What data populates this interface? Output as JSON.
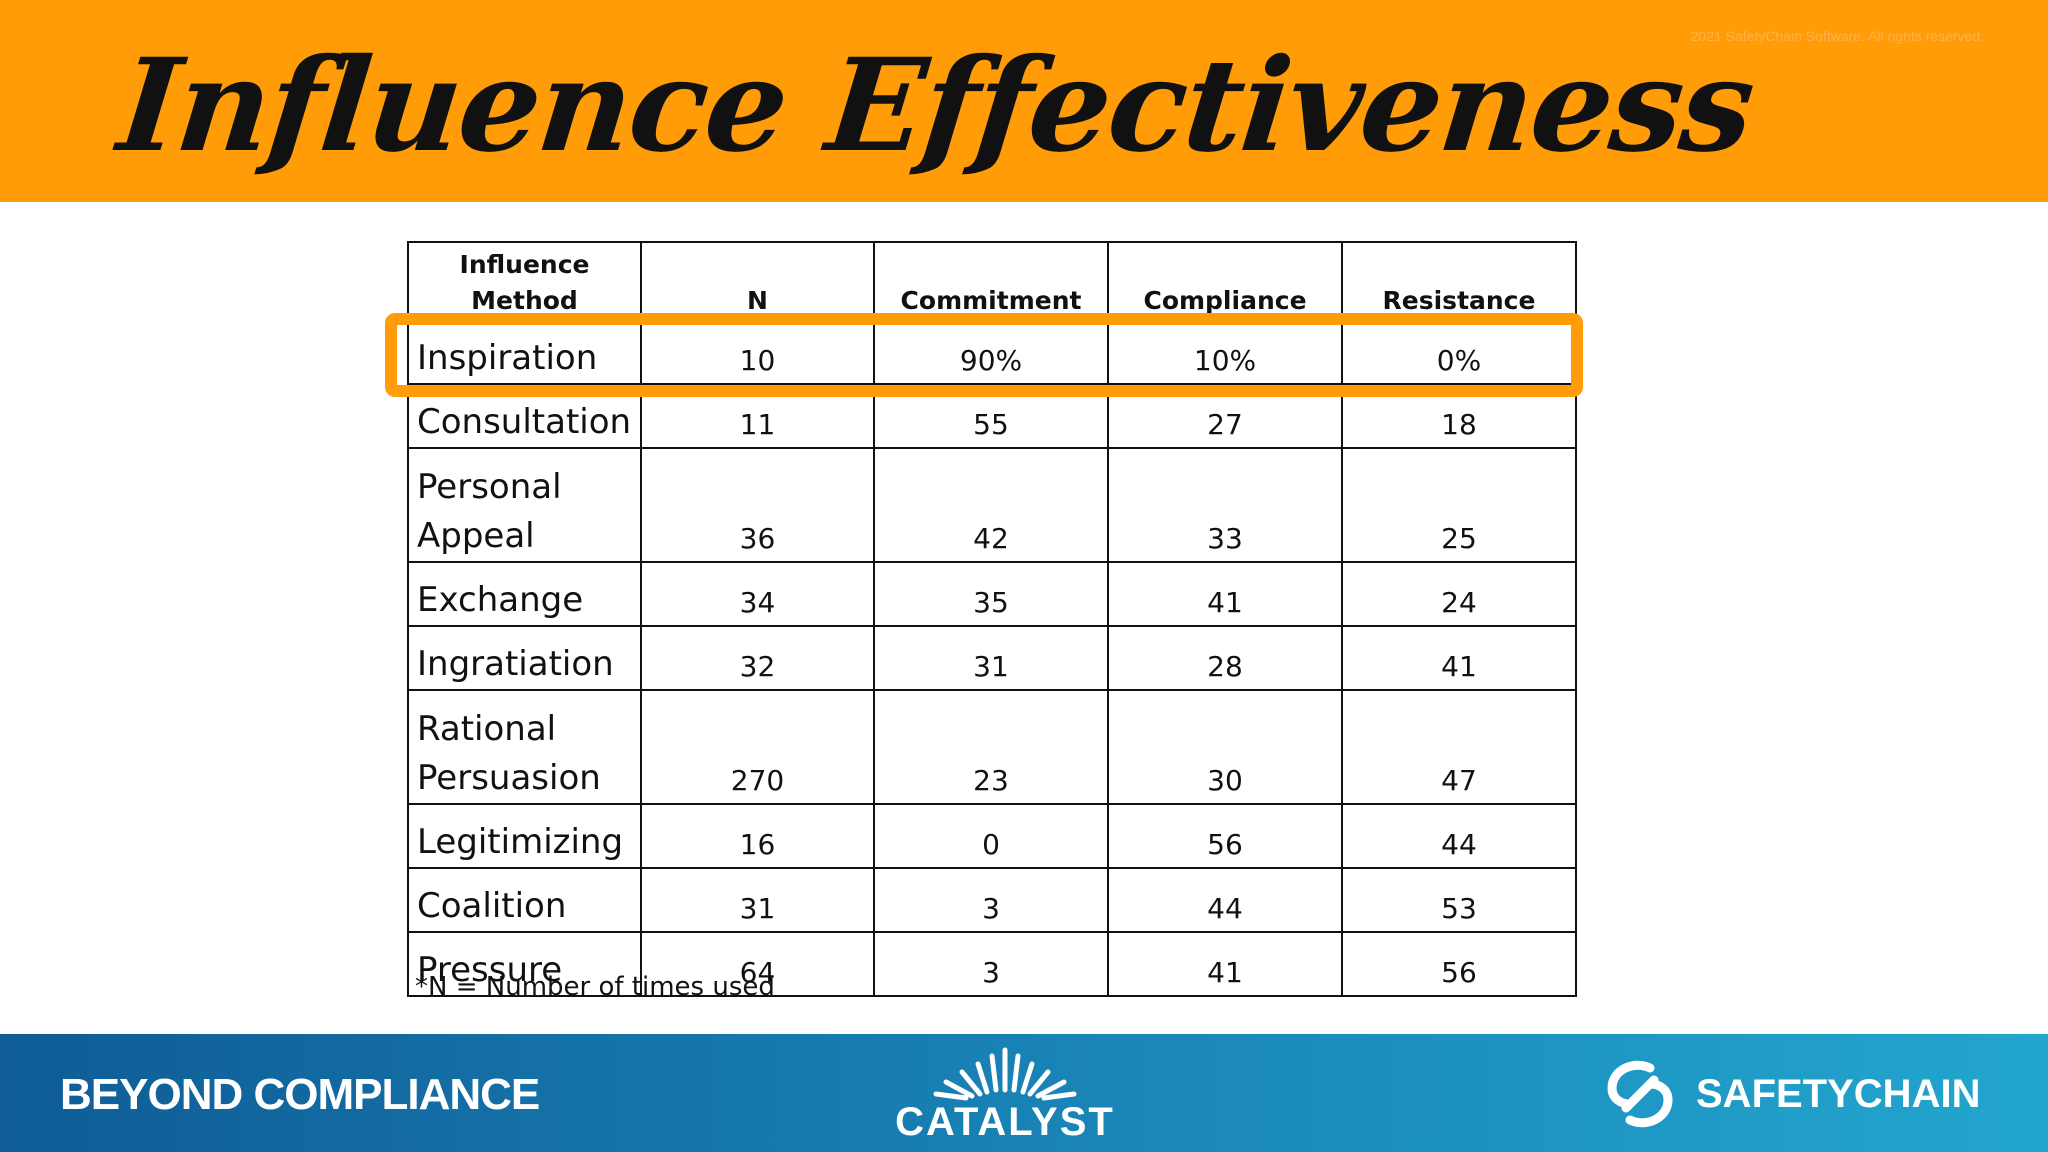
{
  "slide": {
    "title": "Influence Effectiveness",
    "copyright": "2021 SafetyChain Software. All rights reserved."
  },
  "table": {
    "headers": [
      "Influence Method",
      "N",
      "Commitment",
      "Compliance",
      "Resistance"
    ],
    "rows": [
      {
        "method": "Inspiration",
        "n": "10",
        "commitment": "90%",
        "compliance": "10%",
        "resistance": "0%"
      },
      {
        "method": "Consultation",
        "n": "11",
        "commitment": "55",
        "compliance": "27",
        "resistance": "18"
      },
      {
        "method": "Personal Appeal",
        "n": "36",
        "commitment": "42",
        "compliance": "33",
        "resistance": "25"
      },
      {
        "method": "Exchange",
        "n": "34",
        "commitment": "35",
        "compliance": "41",
        "resistance": "24"
      },
      {
        "method": "Ingratiation",
        "n": "32",
        "commitment": "31",
        "compliance": "28",
        "resistance": "41"
      },
      {
        "method": "Rational Persuasion",
        "n": "270",
        "commitment": "23",
        "compliance": "30",
        "resistance": "47"
      },
      {
        "method": "Legitimizing",
        "n": "16",
        "commitment": "0",
        "compliance": "56",
        "resistance": "44"
      },
      {
        "method": "Coalition",
        "n": "31",
        "commitment": "3",
        "compliance": "44",
        "resistance": "53"
      },
      {
        "method": "Pressure",
        "n": "64",
        "commitment": "3",
        "compliance": "41",
        "resistance": "56"
      }
    ],
    "highlighted_row": "Inspiration",
    "footnote": "*N = Number of times used"
  },
  "footer": {
    "left_text": "BEYOND COMPLIANCE",
    "center_logo_text": "CATALYST",
    "right_logo_text": "SAFETYCHAIN"
  },
  "colors": {
    "header_orange": "#FF9C08",
    "highlight_orange": "#FF9C08",
    "footer_blue": "#1A86B8"
  }
}
